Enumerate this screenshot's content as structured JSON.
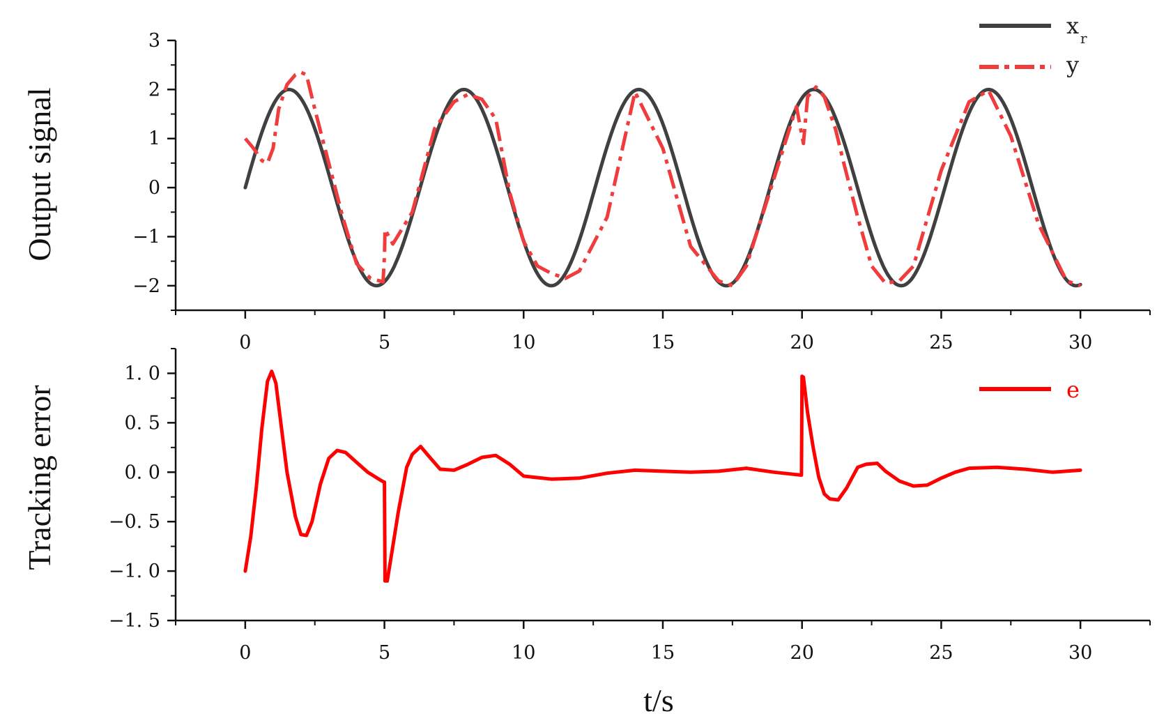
{
  "chart_data": [
    {
      "type": "line",
      "ylabel": "Output signal",
      "xlabel": "",
      "xlim": [
        -2.5,
        32.5
      ],
      "ylim": [
        -2.5,
        3
      ],
      "x_ticks": [
        "0",
        "5",
        "10",
        "15",
        "20",
        "25",
        "30"
      ],
      "y_ticks": [
        "−2",
        "−1",
        "0",
        "1",
        "2",
        "3"
      ],
      "legend_position": "top-right",
      "series": [
        {
          "name": "x",
          "name_subscript": "r",
          "color": "#404040",
          "style": "solid",
          "function": "2*sin(t)",
          "x": [
            0,
            1.5708,
            4.7124,
            7.854,
            10.9956,
            14.1372,
            17.2788,
            20.4204,
            23.562,
            26.7035,
            30
          ],
          "values": [
            0,
            2,
            -2,
            2,
            -2,
            2,
            -2,
            2,
            -2,
            2,
            -1.98
          ]
        },
        {
          "name": "y",
          "color": "#f03c3c",
          "style": "dash-dot",
          "x": [
            0,
            0.3,
            0.6,
            0.8,
            1.0,
            1.2,
            1.5,
            1.8,
            2.0,
            2.2,
            2.5,
            3.0,
            3.5,
            4.0,
            4.5,
            4.95,
            5.0,
            5.02,
            5.3,
            6.0,
            6.8,
            7.5,
            8.0,
            8.5,
            9.0,
            9.5,
            10.0,
            10.5,
            11.0,
            11.5,
            12.0,
            13.0,
            14.0,
            15.0,
            16.0,
            17.0,
            17.5,
            18.0,
            19.0,
            19.8,
            20.0,
            20.05,
            20.2,
            20.5,
            20.8,
            21.2,
            21.5,
            22.0,
            22.5,
            23.0,
            23.5,
            24.0,
            25.0,
            26.0,
            26.7,
            27.5,
            28.5,
            29.5,
            30.0
          ],
          "values": [
            1.0,
            0.8,
            0.55,
            0.5,
            0.8,
            1.6,
            2.1,
            2.3,
            2.35,
            2.3,
            1.6,
            0.5,
            -0.6,
            -1.55,
            -1.85,
            -1.92,
            -1.4,
            -0.85,
            -1.15,
            -0.5,
            1.2,
            1.75,
            1.9,
            1.8,
            1.4,
            -0.1,
            -1.1,
            -1.6,
            -1.75,
            -1.85,
            -1.7,
            -0.6,
            1.95,
            0.8,
            -1.2,
            -1.9,
            -2.0,
            -1.6,
            0.2,
            1.65,
            1.05,
            0.9,
            1.85,
            2.05,
            1.85,
            1.2,
            0.5,
            -0.6,
            -1.6,
            -1.95,
            -1.9,
            -1.6,
            0.35,
            1.75,
            1.98,
            1.05,
            -0.75,
            -1.9,
            -2.0
          ]
        }
      ]
    },
    {
      "type": "line",
      "ylabel": "Tracking error",
      "xlabel": "t/s",
      "xlim": [
        -2.5,
        32.5
      ],
      "ylim": [
        -1.5,
        1.25
      ],
      "x_ticks": [
        "0",
        "5",
        "10",
        "15",
        "20",
        "25",
        "30"
      ],
      "y_ticks": [
        "−1. 5",
        "−1. 0",
        "−0. 5",
        "0. 0",
        "0. 5",
        "1. 0"
      ],
      "legend_position": "top-right",
      "series": [
        {
          "name": "e",
          "color": "#ff0000",
          "style": "solid",
          "x": [
            0,
            0.2,
            0.4,
            0.6,
            0.8,
            0.95,
            1.1,
            1.3,
            1.5,
            1.8,
            2.0,
            2.2,
            2.4,
            2.7,
            3.0,
            3.3,
            3.6,
            4.0,
            4.4,
            4.8,
            4.98,
            5.0,
            5.02,
            5.1,
            5.3,
            5.5,
            5.8,
            6.0,
            6.3,
            6.6,
            7.0,
            7.5,
            8.0,
            8.5,
            9.0,
            9.5,
            10.0,
            11.0,
            12.0,
            13.0,
            14.0,
            15.0,
            16.0,
            17.0,
            18.0,
            19.0,
            19.98,
            20.0,
            20.05,
            20.2,
            20.4,
            20.6,
            20.8,
            21.0,
            21.3,
            21.6,
            22.0,
            22.3,
            22.7,
            23.0,
            23.5,
            24.0,
            24.5,
            25.0,
            25.5,
            26.0,
            27.0,
            28.0,
            29.0,
            30.0
          ],
          "values": [
            -1.0,
            -0.65,
            -0.15,
            0.45,
            0.92,
            1.02,
            0.9,
            0.45,
            0.0,
            -0.45,
            -0.63,
            -0.64,
            -0.5,
            -0.12,
            0.14,
            0.22,
            0.2,
            0.1,
            0.0,
            -0.07,
            -0.1,
            -0.1,
            -1.1,
            -1.1,
            -0.75,
            -0.4,
            0.05,
            0.18,
            0.26,
            0.16,
            0.03,
            0.02,
            0.08,
            0.15,
            0.17,
            0.08,
            -0.04,
            -0.07,
            -0.06,
            -0.01,
            0.02,
            0.01,
            0.0,
            0.01,
            0.04,
            0.0,
            -0.03,
            0.97,
            0.96,
            0.6,
            0.25,
            -0.05,
            -0.22,
            -0.27,
            -0.28,
            -0.16,
            0.05,
            0.08,
            0.09,
            0.01,
            -0.09,
            -0.14,
            -0.13,
            -0.06,
            0.0,
            0.04,
            0.05,
            0.03,
            0.0,
            0.02
          ]
        }
      ]
    }
  ]
}
